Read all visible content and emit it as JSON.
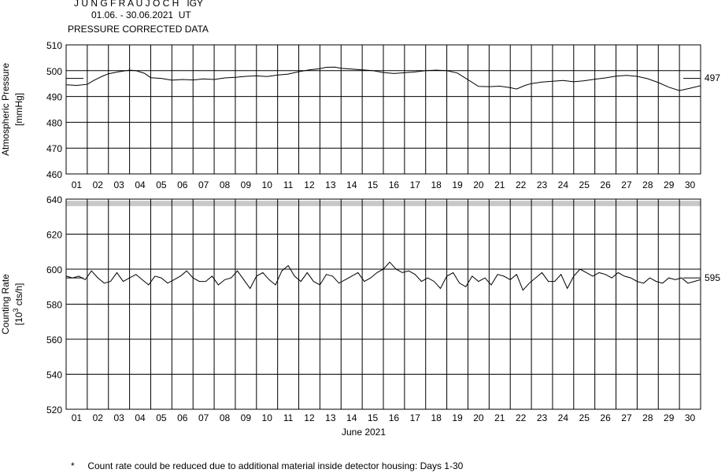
{
  "header": {
    "station": "J U N G F R A U J O C H   IGY",
    "period": "01.06. - 30.06.2021  UT",
    "subtitle": "PRESSURE CORRECTED DATA"
  },
  "footnote": {
    "marker": "*",
    "text": "Count rate could be reduced due to additional material inside detector housing: Days 1-30"
  },
  "colors": {
    "line": "#000000",
    "grid": "#000000",
    "band": "#c8c8c8",
    "background": "#ffffff"
  },
  "chart_data": [
    {
      "type": "line",
      "title": "",
      "ylabel": "Atmospheric Pressure",
      "yunit": "[mmHg]",
      "xlabel": "",
      "ylim": [
        460,
        510
      ],
      "yticks": [
        "460",
        "470",
        "480",
        "490",
        "500",
        "510"
      ],
      "categories": [
        "01",
        "02",
        "03",
        "04",
        "05",
        "06",
        "07",
        "08",
        "09",
        "10",
        "11",
        "12",
        "13",
        "14",
        "15",
        "16",
        "17",
        "18",
        "19",
        "20",
        "21",
        "22",
        "23",
        "24",
        "25",
        "26",
        "27",
        "28",
        "29",
        "30"
      ],
      "reference_value": 497,
      "reference_label": "497",
      "grid": true,
      "series": [
        {
          "x": [
            1.0,
            1.5,
            2.0,
            2.3,
            2.7,
            3.0,
            3.5,
            4.0,
            4.3,
            4.7,
            5.0,
            5.5,
            6.0,
            6.5,
            7.0,
            7.5,
            8.0,
            8.5,
            9.0,
            9.5,
            10.0,
            10.5,
            11.0,
            11.5,
            12.0,
            12.5,
            13.0,
            13.3,
            13.7,
            14.0,
            14.5,
            15.0,
            15.5,
            16.0,
            16.5,
            17.0,
            17.5,
            18.0,
            18.5,
            19.0,
            19.5,
            20.0,
            20.5,
            21.0,
            21.5,
            22.0,
            22.3,
            22.7,
            23.0,
            23.5,
            24.0,
            24.5,
            25.0,
            25.5,
            26.0,
            26.5,
            27.0,
            27.5,
            28.0,
            28.5,
            29.0,
            29.5,
            30.0,
            30.5,
            31.0
          ],
          "y": [
            494.5,
            494.3,
            494.7,
            496.2,
            497.8,
            498.8,
            499.6,
            500.2,
            500.0,
            499.0,
            497.3,
            497.0,
            496.3,
            496.6,
            496.4,
            496.8,
            496.6,
            497.2,
            497.4,
            497.8,
            498.0,
            497.7,
            498.3,
            498.7,
            499.6,
            500.3,
            500.8,
            501.3,
            501.4,
            500.9,
            500.6,
            500.3,
            500.0,
            499.3,
            498.9,
            499.2,
            499.5,
            500.0,
            500.2,
            500.0,
            499.1,
            496.5,
            493.9,
            493.8,
            494.0,
            493.4,
            492.9,
            494.3,
            495.0,
            495.6,
            495.9,
            496.2,
            495.7,
            496.1,
            496.7,
            497.2,
            497.9,
            498.2,
            497.8,
            496.9,
            495.4,
            493.6,
            492.3,
            493.2,
            494.2
          ]
        }
      ]
    },
    {
      "type": "line",
      "title": "",
      "ylabel": "Counting Rate",
      "yunit_prefix": "[10",
      "yunit_exp": "3",
      "yunit_suffix": " cts/h]",
      "xlabel": "June 2021",
      "ylim": [
        520,
        640
      ],
      "yticks": [
        "520",
        "540",
        "560",
        "580",
        "600",
        "620",
        "640"
      ],
      "categories": [
        "01",
        "02",
        "03",
        "04",
        "05",
        "06",
        "07",
        "08",
        "09",
        "10",
        "11",
        "12",
        "13",
        "14",
        "15",
        "16",
        "17",
        "18",
        "19",
        "20",
        "21",
        "22",
        "23",
        "24",
        "25",
        "26",
        "27",
        "28",
        "29",
        "30"
      ],
      "reference_value": 595,
      "reference_label": "595",
      "marker_band": [
        636,
        639
      ],
      "grid": true,
      "series": [
        {
          "x": [
            1.0,
            1.3,
            1.6,
            1.9,
            2.2,
            2.5,
            2.8,
            3.1,
            3.4,
            3.7,
            4.0,
            4.3,
            4.6,
            4.9,
            5.2,
            5.5,
            5.8,
            6.1,
            6.4,
            6.7,
            7.0,
            7.3,
            7.6,
            7.9,
            8.2,
            8.5,
            8.8,
            9.1,
            9.4,
            9.7,
            10.0,
            10.3,
            10.6,
            10.9,
            11.2,
            11.5,
            11.8,
            12.1,
            12.4,
            12.7,
            13.0,
            13.3,
            13.6,
            13.9,
            14.2,
            14.5,
            14.8,
            15.1,
            15.4,
            15.7,
            16.0,
            16.3,
            16.6,
            16.9,
            17.2,
            17.5,
            17.8,
            18.1,
            18.4,
            18.7,
            19.0,
            19.3,
            19.6,
            19.9,
            20.2,
            20.5,
            20.8,
            21.1,
            21.4,
            21.7,
            22.0,
            22.3,
            22.6,
            22.9,
            23.2,
            23.5,
            23.8,
            24.1,
            24.4,
            24.7,
            25.0,
            25.3,
            25.6,
            25.9,
            26.2,
            26.5,
            26.8,
            27.1,
            27.4,
            27.7,
            28.0,
            28.3,
            28.6,
            28.9,
            29.2,
            29.5,
            29.8,
            30.1,
            30.4,
            30.7,
            31.0
          ],
          "y": [
            596,
            595,
            596,
            594,
            599,
            595,
            592,
            593,
            598,
            593,
            595,
            597,
            594,
            591,
            596,
            595,
            592,
            594,
            596,
            599,
            595,
            593,
            593,
            596,
            591,
            594,
            595,
            599,
            594,
            589,
            596,
            598,
            594,
            591,
            599,
            602,
            596,
            593,
            598,
            593,
            591,
            597,
            596,
            592,
            594,
            596,
            598,
            593,
            595,
            598,
            600,
            604,
            600,
            598,
            599,
            597,
            593,
            595,
            593,
            589,
            596,
            598,
            592,
            590,
            596,
            593,
            595,
            591,
            597,
            596,
            594,
            597,
            588,
            592,
            595,
            598,
            593,
            593,
            597,
            589,
            596,
            600,
            598,
            596,
            598,
            597,
            595,
            598,
            596,
            595,
            593,
            592,
            595,
            593,
            592,
            595,
            594,
            595,
            592,
            593,
            594
          ]
        }
      ]
    }
  ]
}
